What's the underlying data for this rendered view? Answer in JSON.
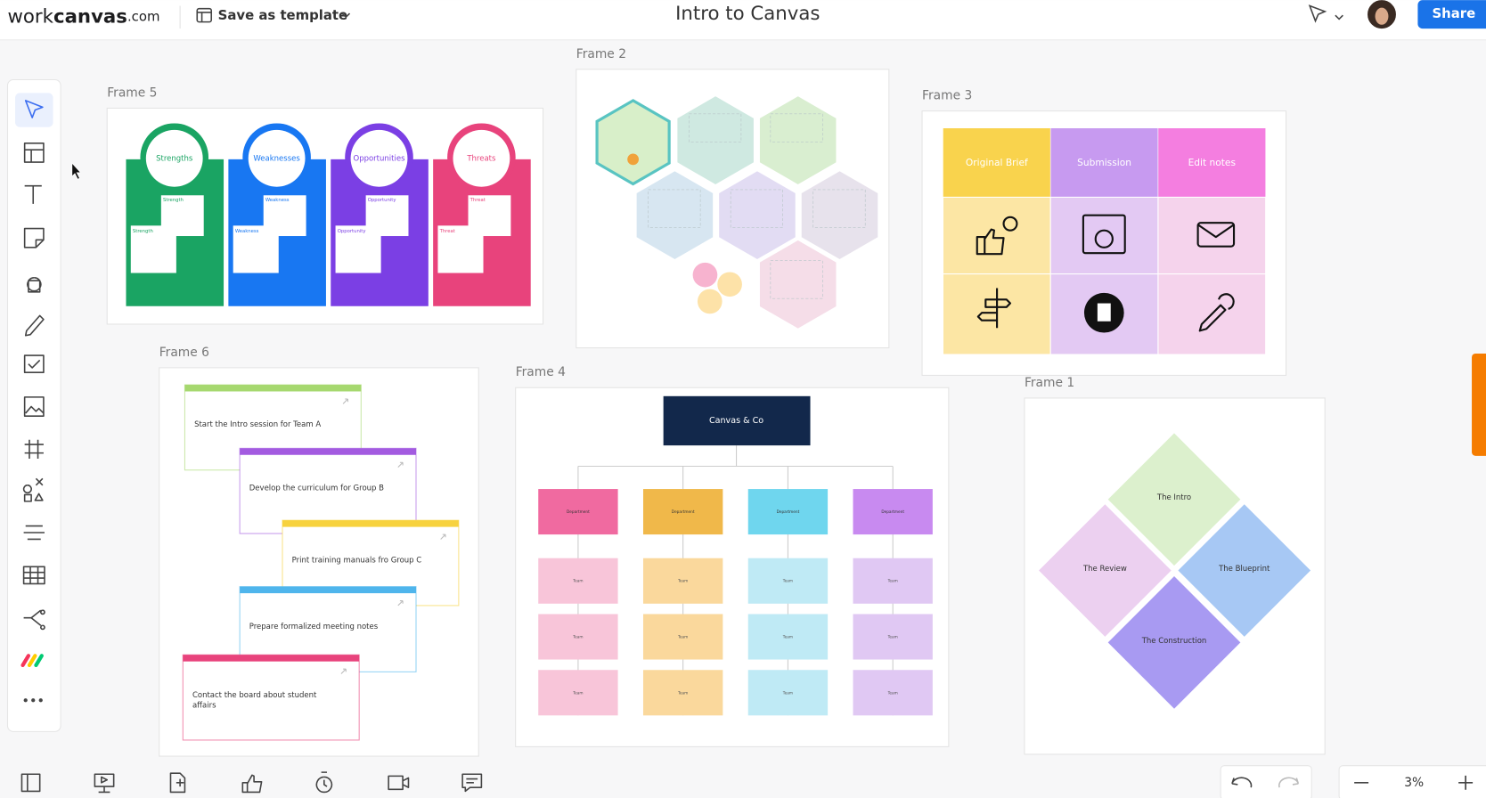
{
  "header": {
    "logo": {
      "work": "work",
      "canvas": "canvas",
      "domain": ".com"
    },
    "save_template": "Save as template",
    "title": "Intro to Canvas",
    "share": "Share"
  },
  "frame5": {
    "label": "Frame 5",
    "columns": [
      {
        "title": "Strengths",
        "notes": [
          "Strength",
          "Strength"
        ]
      },
      {
        "title": "Weaknesses",
        "notes": [
          "Weakness",
          "Weakness"
        ]
      },
      {
        "title": "Opportunities",
        "notes": [
          "Opportunity",
          "Opportunity"
        ]
      },
      {
        "title": "Threats",
        "notes": [
          "Threat",
          "Threat"
        ]
      }
    ]
  },
  "frame2": {
    "label": "Frame 2"
  },
  "frame3": {
    "label": "Frame 3",
    "headers": [
      "Original Brief",
      "Submission",
      "Edit notes"
    ]
  },
  "frame6": {
    "label": "Frame 6",
    "notes": [
      "Start the Intro session for Team A",
      "Develop the curriculum for Group B",
      "Print training manuals fro Group C",
      "Prepare formalized meeting notes",
      "Contact the board about student affairs"
    ]
  },
  "frame4": {
    "label": "Frame 4",
    "root": "Canvas & Co",
    "departments": [
      {
        "name": "Department",
        "teams": [
          "Team",
          "Team",
          "Team"
        ]
      },
      {
        "name": "Department",
        "teams": [
          "Team",
          "Team",
          "Team"
        ]
      },
      {
        "name": "Department",
        "teams": [
          "Team",
          "Team",
          "Team"
        ]
      },
      {
        "name": "Department",
        "teams": [
          "Team",
          "Team",
          "Team"
        ]
      }
    ]
  },
  "frame1": {
    "label": "Frame 1",
    "diamonds": [
      "The Intro",
      "The Review",
      "The Blueprint",
      "The Construction"
    ]
  },
  "zoom": "3%"
}
